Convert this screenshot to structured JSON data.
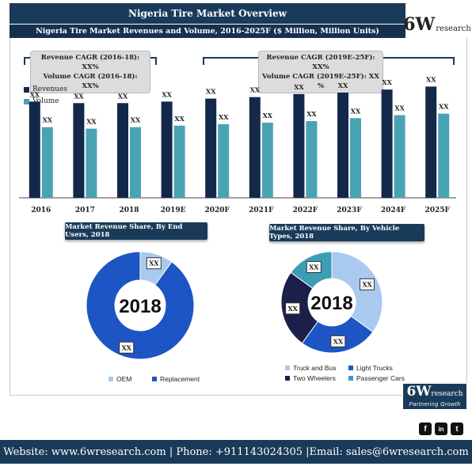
{
  "header": {
    "title": "Nigeria Tire Market Overview",
    "subtitle": "Nigeria Tire Market Revenues and Volume, 2016-2025F ($ Million, Million Units)"
  },
  "logo_top": {
    "main": "6W",
    "sub": "research"
  },
  "cagr": {
    "historic_line1": "Revenue CAGR (2016-18): XX%",
    "historic_line2": "Volume CAGR (2016-18): XX%",
    "forecast_line1": "Revenue CAGR (2019E-25F): XX%",
    "forecast_line2": "Volume CAGR (2019E-25F): XX %"
  },
  "colors": {
    "navy": "#1a3a5a",
    "revenue": "#13294b",
    "volume": "#4aa3b5",
    "oem": "#a9c9ee",
    "replacement": "#1e55c4",
    "truck_bus": "#a9c9ee",
    "light_trucks": "#1e55c4",
    "two_wheelers": "#1c1f4a",
    "passenger_cars": "#3a9eb5"
  },
  "chart_data": [
    {
      "type": "bar",
      "categories": [
        "2016",
        "2017",
        "2018",
        "2019E",
        "2020F",
        "2021F",
        "2022F",
        "2023F",
        "2024F",
        "2025F"
      ],
      "series": [
        {
          "name": "Revenues",
          "values": [
            64,
            63,
            63,
            64,
            66,
            67,
            69,
            70,
            72,
            74
          ],
          "labels": [
            "XX",
            "XX",
            "XX",
            "XX",
            "XX",
            "XX",
            "XX",
            "XX",
            "XX",
            "XX"
          ]
        },
        {
          "name": "Volume",
          "values": [
            47,
            46,
            47,
            48,
            49,
            50,
            51,
            53,
            55,
            56
          ],
          "labels": [
            "XX",
            "XX",
            "XX",
            "XX",
            "XX",
            "XX",
            "XX",
            "XX",
            "XX",
            "XX"
          ]
        }
      ],
      "ylim": [
        0,
        100
      ]
    },
    {
      "type": "pie",
      "title": "Market Revenue Share, By End Users, 2018",
      "center_label": "2018",
      "categories": [
        "OEM",
        "Replacement"
      ],
      "values": [
        10,
        90
      ],
      "labels": [
        "XX",
        "XX"
      ]
    },
    {
      "type": "pie",
      "title": "Market Revenue Share, By Vehicle Types, 2018",
      "center_label": "2018",
      "categories": [
        "Truck and Bus",
        "Light Trucks",
        "Two Wheelers",
        "Passenger Cars"
      ],
      "values": [
        35,
        25,
        25,
        15
      ],
      "labels": [
        "XX",
        "XX",
        "XX",
        "XX"
      ]
    }
  ],
  "logo_bottom": {
    "main": "6W",
    "sub": "research",
    "tagline": "Partnering Growth"
  },
  "social": {
    "facebook": "f",
    "linkedin": "in",
    "twitter": "t"
  },
  "footer": {
    "text": "Website: www.6wresearch.com | Phone: +911143024305 |Email: sales@6wresearch.com"
  }
}
